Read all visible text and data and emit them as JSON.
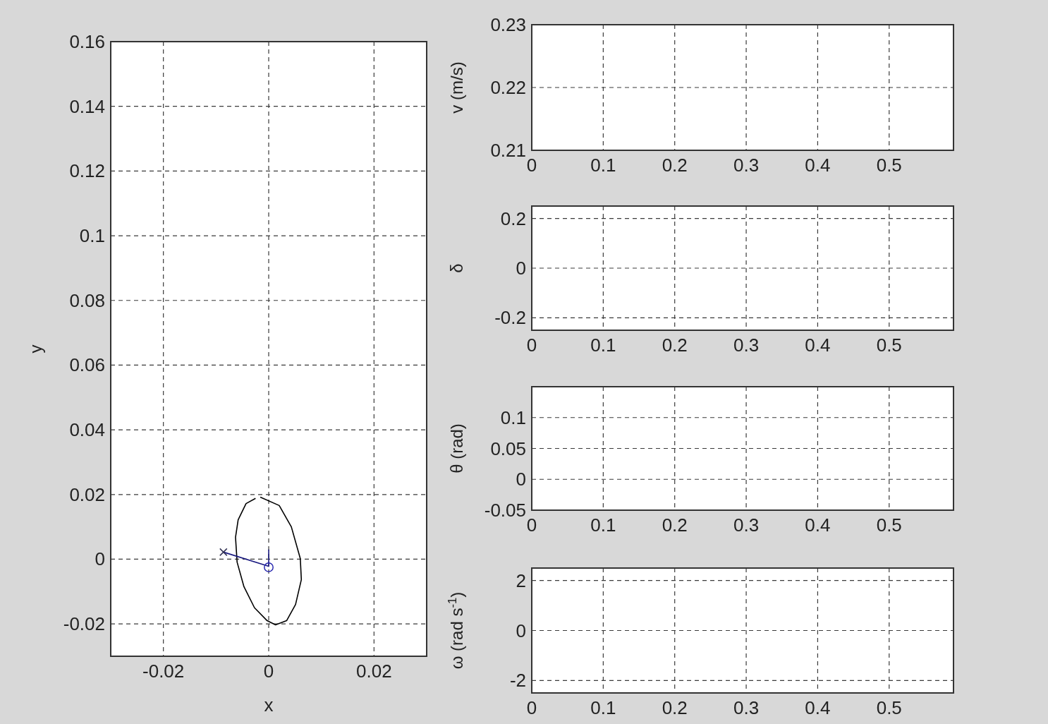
{
  "chart_data": [
    {
      "type": "line",
      "xlabel": "x",
      "ylabel": "y",
      "xlim": [
        -0.03,
        0.03
      ],
      "ylim": [
        -0.03,
        0.16
      ],
      "xticks": [
        -0.02,
        0,
        0.02
      ],
      "yticks": [
        -0.02,
        0,
        0.02,
        0.04,
        0.06,
        0.08,
        0.1,
        0.12,
        0.14,
        0.16
      ],
      "grid": true,
      "series": [
        {
          "color": "#000000",
          "x": [
            -0.0016,
            0.002,
            0.0043,
            0.006,
            0.0062,
            0.0051,
            0.0034,
            0.0013,
            -0.0003,
            -0.0027,
            -0.0047,
            -0.006,
            -0.0063,
            -0.0058,
            -0.0043,
            -0.0025
          ],
          "values": [
            0.0192,
            0.0166,
            0.01,
            0.0002,
            -0.0063,
            -0.014,
            -0.019,
            -0.0203,
            -0.019,
            -0.015,
            -0.0085,
            -0.0009,
            0.0068,
            0.0122,
            0.0172,
            0.0188
          ]
        },
        {
          "color": "#1a1a80",
          "x": [
            -0.0086,
            0,
            0
          ],
          "values": [
            0.0022,
            -0.0022,
            0.003
          ]
        },
        {
          "type": "scatter",
          "color": "#333355",
          "marker": "cross",
          "x": [
            -0.0086
          ],
          "values": [
            0.0022
          ]
        },
        {
          "type": "scatter",
          "color": "#2b2bb0",
          "marker": "circle",
          "x": [
            0
          ],
          "values": [
            -0.0025
          ]
        }
      ]
    },
    {
      "type": "line",
      "ylabel": "v (m/s)",
      "xlim": [
        0,
        0.59
      ],
      "ylim": [
        0.21,
        0.23
      ],
      "xticks": [
        0,
        0.1,
        0.2,
        0.3,
        0.4,
        0.5
      ],
      "yticks": [
        0.21,
        0.22,
        0.23
      ],
      "grid": true
    },
    {
      "type": "line",
      "ylabel": "δ",
      "xlim": [
        0,
        0.59
      ],
      "ylim": [
        -0.25,
        0.25
      ],
      "xticks": [
        0,
        0.1,
        0.2,
        0.3,
        0.4,
        0.5
      ],
      "yticks": [
        -0.2,
        0,
        0.2
      ],
      "grid": true
    },
    {
      "type": "line",
      "ylabel": "θ (rad)",
      "xlim": [
        0,
        0.59
      ],
      "ylim": [
        -0.05,
        0.15
      ],
      "xticks": [
        0,
        0.1,
        0.2,
        0.3,
        0.4,
        0.5
      ],
      "yticks": [
        -0.05,
        0,
        0.05,
        0.1
      ],
      "grid": true
    },
    {
      "type": "line",
      "ylabel": "ω (rad s$^{-1}$)",
      "xlim": [
        0,
        0.59
      ],
      "ylim": [
        -2.5,
        2.5
      ],
      "xticks": [
        0,
        0.1,
        0.2,
        0.3,
        0.4,
        0.5
      ],
      "yticks": [
        -2,
        0,
        2
      ],
      "grid": true
    }
  ]
}
